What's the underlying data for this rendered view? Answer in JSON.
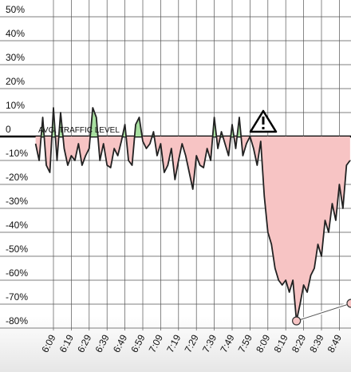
{
  "chart_data": {
    "type": "line",
    "annotation": "AVG. TRAFFIC LEVEL",
    "categories": [
      null,
      null,
      null,
      null,
      null,
      "6:09",
      null,
      null,
      null,
      null,
      "6:19",
      null,
      null,
      null,
      null,
      "6:29",
      null,
      null,
      null,
      null,
      "6:39",
      null,
      null,
      null,
      null,
      "6:49",
      null,
      null,
      null,
      null,
      "6:59",
      null,
      null,
      null,
      null,
      "7:09",
      null,
      null,
      null,
      null,
      "7:19",
      null,
      null,
      null,
      null,
      "7:29",
      null,
      null,
      null,
      null,
      "7:39",
      null,
      null,
      null,
      null,
      "7:49",
      null,
      null,
      null,
      null,
      "7:59",
      null,
      null,
      null,
      null,
      "8:09",
      null,
      null,
      null,
      null,
      "8:19",
      null,
      null,
      null,
      null,
      "8:29",
      null,
      null,
      null,
      null,
      "8:39",
      null,
      null,
      null,
      null,
      "8:49",
      null,
      null,
      null
    ],
    "values": [
      -3,
      -10,
      8,
      -12,
      -15,
      12,
      -10,
      10,
      -5,
      -12,
      -8,
      -10,
      -3,
      -12,
      -8,
      -5,
      12,
      8,
      -10,
      -3,
      -12,
      -13,
      -5,
      -8,
      -2,
      5,
      -10,
      -12,
      5,
      8,
      -2,
      -5,
      -3,
      2,
      -8,
      -3,
      -15,
      -12,
      -5,
      -18,
      -10,
      -3,
      -8,
      -15,
      -22,
      -8,
      -12,
      -13,
      -5,
      -10,
      8,
      -5,
      2,
      -3,
      -8,
      5,
      -5,
      8,
      -8,
      -3,
      0,
      -5,
      -12,
      -2,
      -25,
      -40,
      -45,
      -55,
      -60,
      -62,
      -60,
      -65,
      -60,
      -77,
      -70,
      -62,
      -65,
      -58,
      -55,
      -45,
      -50,
      -35,
      -40,
      -28,
      -35,
      -20,
      -30,
      -12,
      -10
    ],
    "ylim": [
      -81,
      57
    ],
    "yticks": [
      {
        "value": 50,
        "label": "50%"
      },
      {
        "value": 40,
        "label": "40%"
      },
      {
        "value": 30,
        "label": "30%"
      },
      {
        "value": 20,
        "label": "20%"
      },
      {
        "value": 10,
        "label": "10%"
      },
      0,
      {
        "value": -10,
        "label": "-10%"
      },
      {
        "value": -20,
        "label": "-20%"
      },
      {
        "value": -30,
        "label": "-30%"
      },
      {
        "value": -40,
        "label": "-40%"
      },
      {
        "value": -50,
        "label": "-50%"
      },
      {
        "value": -60,
        "label": "-60%"
      },
      {
        "value": -70,
        "label": "-70%"
      },
      {
        "value": -80,
        "label": "-80%"
      }
    ],
    "grid": true,
    "color": "#222222",
    "above_color": "#a8e0a0",
    "below_color": "#f7c4c4"
  }
}
